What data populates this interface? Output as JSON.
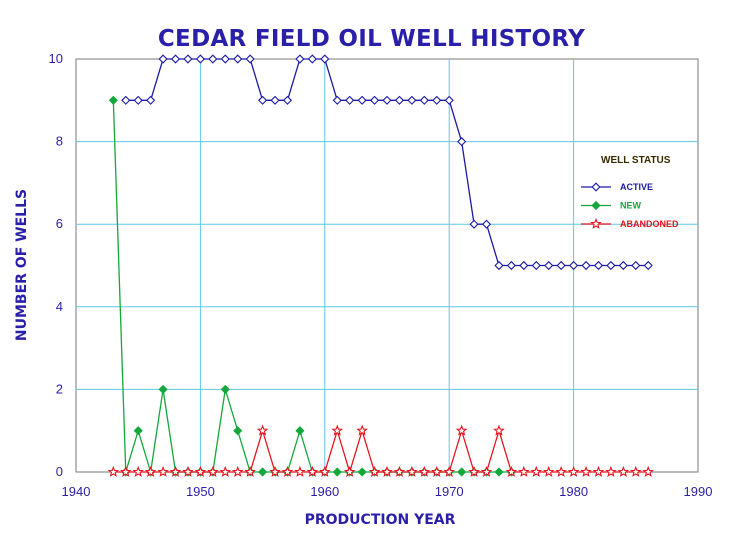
{
  "chart_data": {
    "type": "line",
    "title": "CEDAR FIELD OIL WELL HISTORY",
    "xlabel": "PRODUCTION YEAR",
    "ylabel": "NUMBER OF WELLS",
    "xlim": [
      1940,
      1990
    ],
    "ylim": [
      0,
      10
    ],
    "xticks": [
      1940,
      1950,
      1960,
      1970,
      1980,
      1990
    ],
    "yticks": [
      0,
      2,
      4,
      6,
      8,
      10
    ],
    "grid": true,
    "legend": {
      "title": "WELL STATUS",
      "placement": "right"
    },
    "series": [
      {
        "name": "ACTIVE",
        "color": "#1a1aa6",
        "marker": "diamond-open",
        "x": [
          1944,
          1945,
          1946,
          1947,
          1948,
          1949,
          1950,
          1951,
          1952,
          1953,
          1954,
          1955,
          1956,
          1957,
          1958,
          1959,
          1960,
          1961,
          1962,
          1963,
          1964,
          1965,
          1966,
          1967,
          1968,
          1969,
          1970,
          1971,
          1972,
          1973,
          1974,
          1975,
          1976,
          1977,
          1978,
          1979,
          1980,
          1981,
          1982,
          1983,
          1984,
          1985,
          1986
        ],
        "y": [
          9,
          9,
          9,
          10,
          10,
          10,
          10,
          10,
          10,
          10,
          10,
          9,
          9,
          9,
          10,
          10,
          10,
          9,
          9,
          9,
          9,
          9,
          9,
          9,
          9,
          9,
          9,
          8,
          6,
          6,
          5,
          5,
          5,
          5,
          5,
          5,
          5,
          5,
          5,
          5,
          5,
          5,
          5
        ]
      },
      {
        "name": "NEW",
        "color": "#14a83c",
        "marker": "diamond-filled",
        "x": [
          1943,
          1944,
          1945,
          1946,
          1947,
          1948,
          1949,
          1950,
          1951,
          1952,
          1953,
          1954,
          1955,
          1956,
          1957,
          1958,
          1959,
          1960,
          1961,
          1962,
          1963,
          1964,
          1965,
          1966,
          1967,
          1968,
          1969,
          1970,
          1971,
          1972,
          1973,
          1974,
          1975
        ],
        "y": [
          9,
          0,
          1,
          0,
          2,
          0,
          0,
          0,
          0,
          2,
          1,
          0,
          0,
          0,
          0,
          1,
          0,
          0,
          0,
          0,
          0,
          0,
          0,
          0,
          0,
          0,
          0,
          0,
          0,
          0,
          0,
          0,
          0
        ]
      },
      {
        "name": "ABANDONED",
        "color": "#e8141e",
        "marker": "star-open",
        "x": [
          1943,
          1944,
          1945,
          1946,
          1947,
          1948,
          1949,
          1950,
          1951,
          1952,
          1953,
          1954,
          1955,
          1956,
          1957,
          1958,
          1959,
          1960,
          1961,
          1962,
          1963,
          1964,
          1965,
          1966,
          1967,
          1968,
          1969,
          1970,
          1971,
          1972,
          1973,
          1974,
          1975,
          1976,
          1977,
          1978,
          1979,
          1980,
          1981,
          1982,
          1983,
          1984,
          1985,
          1986
        ],
        "y": [
          0,
          0,
          0,
          0,
          0,
          0,
          0,
          0,
          0,
          0,
          0,
          0,
          1,
          0,
          0,
          0,
          0,
          0,
          1,
          0,
          1,
          0,
          0,
          0,
          0,
          0,
          0,
          0,
          1,
          0,
          0,
          1,
          0,
          0,
          0,
          0,
          0,
          0,
          0,
          0,
          0,
          0,
          0,
          0
        ]
      }
    ]
  }
}
